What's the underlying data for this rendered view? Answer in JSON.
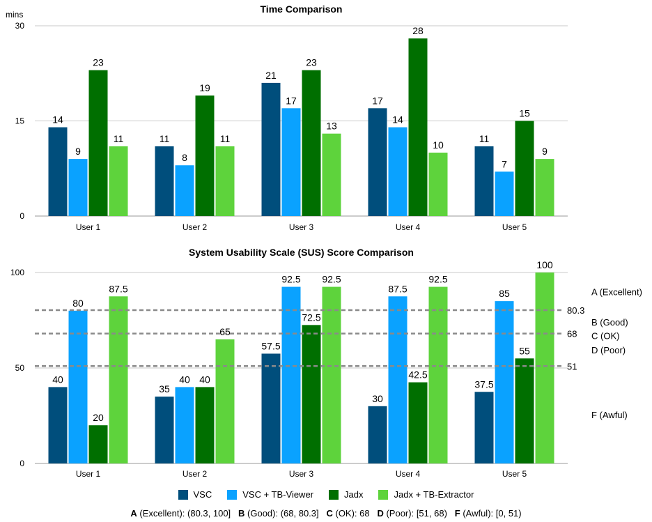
{
  "chart_data": [
    {
      "type": "bar",
      "title": "Time Comparison",
      "ylabel": "mins",
      "ylim": [
        0,
        30
      ],
      "yticks": [
        0,
        15,
        30
      ],
      "categories": [
        "User 1",
        "User 2",
        "User 3",
        "User 4",
        "User 5"
      ],
      "series": [
        {
          "name": "VSC",
          "values": [
            14,
            11,
            21,
            17,
            11
          ]
        },
        {
          "name": "VSC + TB-Viewer",
          "values": [
            9,
            8,
            17,
            14,
            7
          ]
        },
        {
          "name": "Jadx",
          "values": [
            23,
            19,
            23,
            28,
            15
          ]
        },
        {
          "name": "Jadx + TB-Extractor",
          "values": [
            11,
            11,
            13,
            10,
            9
          ]
        }
      ],
      "grid": true
    },
    {
      "type": "bar",
      "title": "System Usability Scale (SUS) Score Comparison",
      "ylim": [
        0,
        100
      ],
      "yticks": [
        0,
        50,
        100
      ],
      "categories": [
        "User 1",
        "User 2",
        "User 3",
        "User 4",
        "User 5"
      ],
      "series": [
        {
          "name": "VSC",
          "values": [
            40,
            35,
            57.5,
            30,
            37.5
          ]
        },
        {
          "name": "VSC + TB-Viewer",
          "values": [
            80,
            40,
            92.5,
            87.5,
            85
          ]
        },
        {
          "name": "Jadx",
          "values": [
            20,
            40,
            72.5,
            42.5,
            55
          ]
        },
        {
          "name": "Jadx + TB-Extractor",
          "values": [
            87.5,
            65,
            92.5,
            92.5,
            100
          ]
        }
      ],
      "reference_lines": [
        {
          "value": 80.3,
          "label": "80.3"
        },
        {
          "value": 68,
          "label": "68"
        },
        {
          "value": 51,
          "label": "51"
        }
      ],
      "band_labels": [
        {
          "label": "A (Excellent)",
          "at": 90
        },
        {
          "label": "B (Good)",
          "at": 74
        },
        {
          "label": "C (OK)",
          "at": 67
        },
        {
          "label": "D (Poor)",
          "at": 59.5
        },
        {
          "label": "F (Awful)",
          "at": 25.5
        }
      ],
      "grid": true
    }
  ],
  "colors": [
    "#004e7c",
    "#0aa2ff",
    "#006f00",
    "#5ed33c"
  ],
  "legend": {
    "placement": "bottom",
    "items": [
      {
        "label": "VSC",
        "color": "#004e7c"
      },
      {
        "label": "VSC + TB-Viewer",
        "color": "#0aa2ff"
      },
      {
        "label": "Jadx",
        "color": "#006f00"
      },
      {
        "label": "Jadx + TB-Extractor",
        "color": "#5ed33c"
      }
    ]
  },
  "note": {
    "a_key": "A",
    "a_text": " (Excellent): (80.3, 100]",
    "b_key": "B",
    "b_text": " (Good): (68, 80.3]",
    "c_key": "C",
    "c_text": " (OK): 68",
    "d_key": "D",
    "d_text": " (Poor): [51, 68)",
    "f_key": "F",
    "f_text": " (Awful): [0, 51)"
  }
}
